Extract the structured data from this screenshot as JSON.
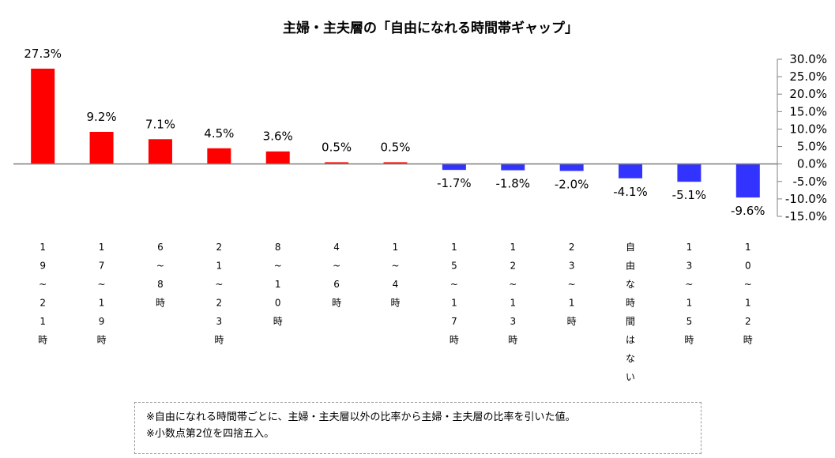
{
  "chart_data": {
    "type": "bar",
    "title": "主婦・主夫層の「自由になれる時間帯ギャップ」",
    "categories": [
      "19~21時",
      "17~19時",
      "6~8時",
      "21~23時",
      "8~10時",
      "4~6時",
      "1~4時",
      "15~17時",
      "12~13時",
      "23~1時",
      "自由な時間はない",
      "13~15時",
      "10~12時"
    ],
    "category_chars": [
      [
        "1",
        "9",
        "~",
        "2",
        "1",
        "時"
      ],
      [
        "1",
        "7",
        "~",
        "1",
        "9",
        "時"
      ],
      [
        "6",
        "~",
        "8",
        "時"
      ],
      [
        "2",
        "1",
        "~",
        "2",
        "3",
        "時"
      ],
      [
        "8",
        "~",
        "1",
        "0",
        "時"
      ],
      [
        "4",
        "~",
        "6",
        "時"
      ],
      [
        "1",
        "~",
        "4",
        "時"
      ],
      [
        "1",
        "5",
        "~",
        "1",
        "7",
        "時"
      ],
      [
        "1",
        "2",
        "~",
        "1",
        "3",
        "時"
      ],
      [
        "2",
        "3",
        "~",
        "1",
        "時"
      ],
      [
        "自",
        "由",
        "な",
        "時",
        "間",
        "は",
        "な",
        "い"
      ],
      [
        "1",
        "3",
        "~",
        "1",
        "5",
        "時"
      ],
      [
        "1",
        "0",
        "~",
        "1",
        "2",
        "時"
      ]
    ],
    "values": [
      27.3,
      9.2,
      7.1,
      4.5,
      3.6,
      0.5,
      0.5,
      -1.7,
      -1.8,
      -2.0,
      -4.1,
      -5.1,
      -9.6
    ],
    "value_labels": [
      "27.3%",
      "9.2%",
      "7.1%",
      "4.5%",
      "3.6%",
      "0.5%",
      "0.5%",
      "-1.7%",
      "-1.8%",
      "-2.0%",
      "-4.1%",
      "-5.1%",
      "-9.6%"
    ],
    "ylim": [
      -15,
      30
    ],
    "yticks": [
      30,
      25,
      20,
      15,
      10,
      5,
      0,
      -5,
      -10,
      -15
    ],
    "ytick_labels": [
      "30.0%",
      "25.0%",
      "20.0%",
      "15.0%",
      "10.0%",
      "5.0%",
      "0.0%",
      "-5.0%",
      "-10.0%",
      "-15.0%"
    ],
    "y_axis_side": "right",
    "grid": false,
    "colors": {
      "positive": "#ff0000",
      "negative": "#3333ff",
      "axis": "#808080"
    }
  },
  "notes": [
    "※自由になれる時間帯ごとに、主婦・主夫層以外の比率から主婦・主夫層の比率を引いた値。",
    "※小数点第2位を四捨五入。"
  ]
}
